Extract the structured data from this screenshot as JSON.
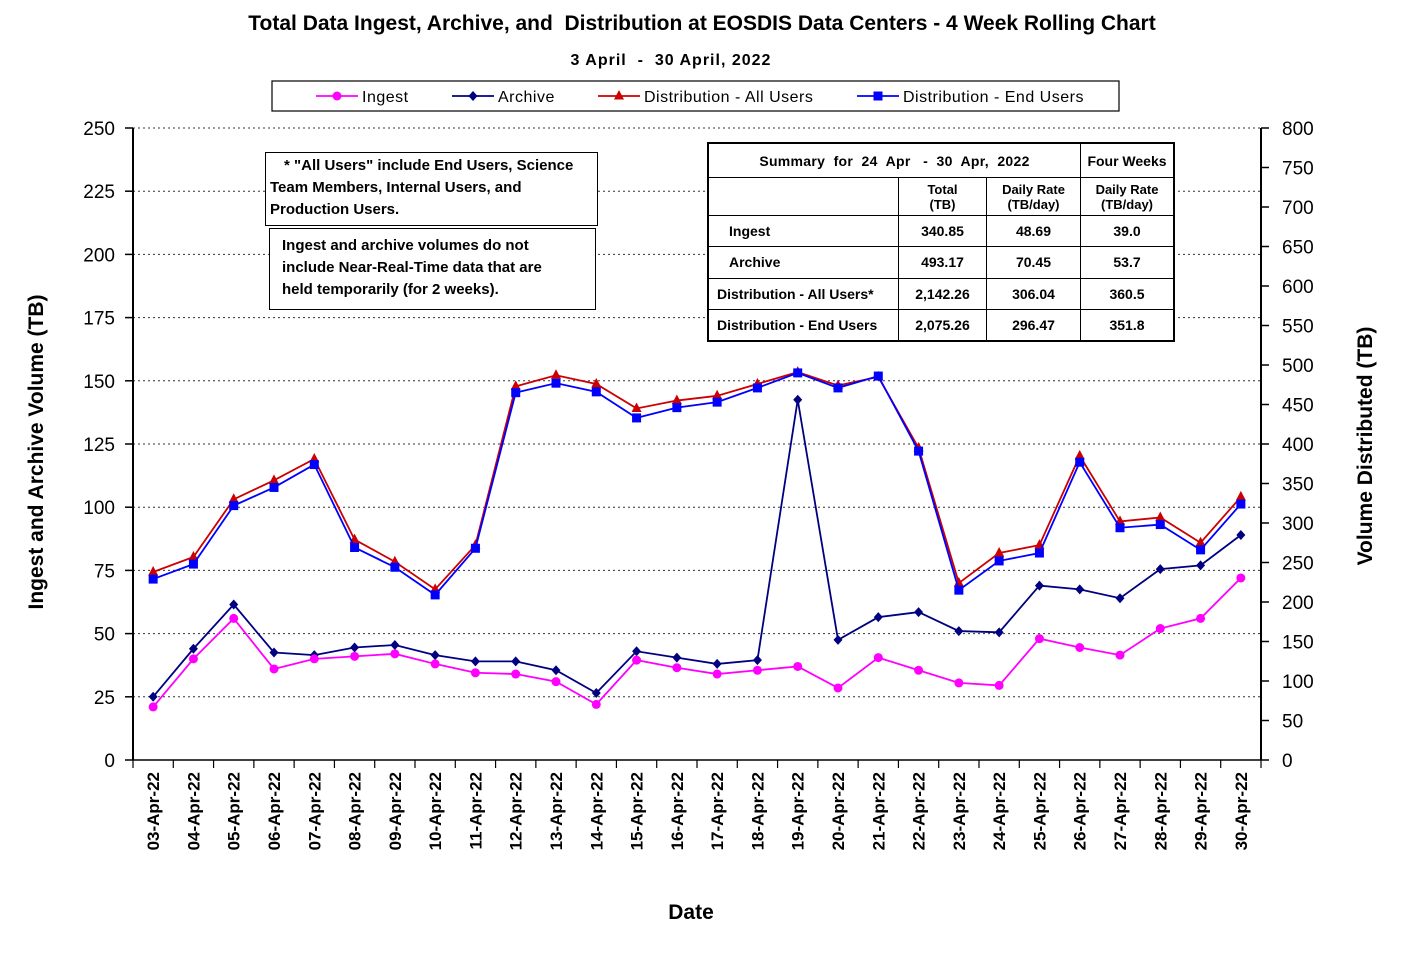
{
  "chart_data": {
    "type": "line",
    "title": "Total Data Ingest, Archive, and  Distribution at EOSDIS Data Centers - 4 Week Rolling Chart",
    "subtitle": "3 April  -  30 April, 2022",
    "xlabel": "Date",
    "ylabel_left": "Ingest and Archive Volume (TB)",
    "ylabel_right": "Volume Distributed (TB)",
    "y_left_range": [
      0,
      250
    ],
    "y_left_ticks": [
      "0",
      "25",
      "50",
      "75",
      "100",
      "125",
      "150",
      "175",
      "200",
      "225",
      "250"
    ],
    "y_right_range": [
      0,
      800
    ],
    "y_right_ticks": [
      "0",
      "50",
      "100",
      "150",
      "200",
      "250",
      "300",
      "350",
      "400",
      "450",
      "500",
      "550",
      "600",
      "650",
      "700",
      "750",
      "800"
    ],
    "grid": "horizontal dashed",
    "legend_position": "top",
    "categories": [
      "03-Apr-22",
      "04-Apr-22",
      "05-Apr-22",
      "06-Apr-22",
      "07-Apr-22",
      "08-Apr-22",
      "09-Apr-22",
      "10-Apr-22",
      "11-Apr-22",
      "12-Apr-22",
      "13-Apr-22",
      "14-Apr-22",
      "15-Apr-22",
      "16-Apr-22",
      "17-Apr-22",
      "18-Apr-22",
      "19-Apr-22",
      "20-Apr-22",
      "21-Apr-22",
      "22-Apr-22",
      "23-Apr-22",
      "24-Apr-22",
      "25-Apr-22",
      "26-Apr-22",
      "27-Apr-22",
      "28-Apr-22",
      "29-Apr-22",
      "30-Apr-22"
    ],
    "series": [
      {
        "name": "Ingest",
        "axis": "left",
        "color": "#ff00ff",
        "marker": "circle",
        "values": [
          21,
          40,
          56,
          36,
          40,
          41,
          42,
          38,
          34.5,
          34,
          31,
          22,
          39.5,
          36.5,
          34,
          35.5,
          37,
          28.5,
          40.5,
          35.5,
          30.5,
          29.5,
          48,
          44.5,
          41.5,
          52,
          56,
          72
        ]
      },
      {
        "name": "Archive",
        "axis": "left",
        "color": "#000080",
        "marker": "diamond",
        "values": [
          25,
          44,
          61.5,
          42.5,
          41.5,
          44.5,
          45.5,
          41.5,
          39,
          39,
          35.5,
          26.5,
          43,
          40.5,
          38,
          39.5,
          142.5,
          47.5,
          56.5,
          58.5,
          51,
          50.5,
          69,
          67.5,
          64,
          75.5,
          77,
          89
        ]
      },
      {
        "name": "Distribution - All Users",
        "axis": "right",
        "color": "#cc0000",
        "marker": "triangle",
        "values": [
          238,
          257,
          330,
          354,
          381,
          279,
          251,
          216,
          272,
          473,
          487,
          476,
          445,
          455,
          461,
          476,
          491,
          474,
          485,
          395,
          224,
          262,
          272,
          385,
          302,
          307,
          275,
          333
        ]
      },
      {
        "name": "Distribution - End Users",
        "axis": "right",
        "color": "#0000ff",
        "marker": "square",
        "values": [
          229,
          248,
          322,
          345,
          374,
          269,
          244,
          209,
          268,
          465,
          477,
          466,
          433,
          446,
          453,
          471,
          490,
          471,
          486,
          391,
          215,
          252,
          262,
          377,
          294,
          298,
          266,
          324
        ]
      }
    ]
  },
  "notes": {
    "note1_line1": "* \"All Users\" include End Users, Science",
    "note1_line2": "Team Members,  Internal Users, and",
    "note1_line3": "Production Users.",
    "note2_line1": "Ingest and archive volumes do not",
    "note2_line2": "include Near-Real-Time data that are",
    "note2_line3": "held temporarily (for 2 weeks)."
  },
  "summary": {
    "title": "Summary  for  24  Apr   -  30  Apr,  2022",
    "four_weeks": "Four Weeks",
    "col_total": "Total",
    "col_total_unit": "(TB)",
    "col_daily": "Daily Rate",
    "col_daily_unit": "(TB/day)",
    "col_fw": "Daily Rate",
    "col_fw_unit": "(TB/day)",
    "rows": [
      {
        "label": "Ingest",
        "total": "340.85",
        "daily": "48.69",
        "four_week": "39.0"
      },
      {
        "label": "Archive",
        "total": "493.17",
        "daily": "70.45",
        "four_week": "53.7"
      },
      {
        "label": "Distribution - All Users*",
        "total": "2,142.26",
        "daily": "306.04",
        "four_week": "360.5"
      },
      {
        "label": "Distribution - End Users",
        "total": "2,075.26",
        "daily": "296.47",
        "four_week": "351.8"
      }
    ]
  }
}
